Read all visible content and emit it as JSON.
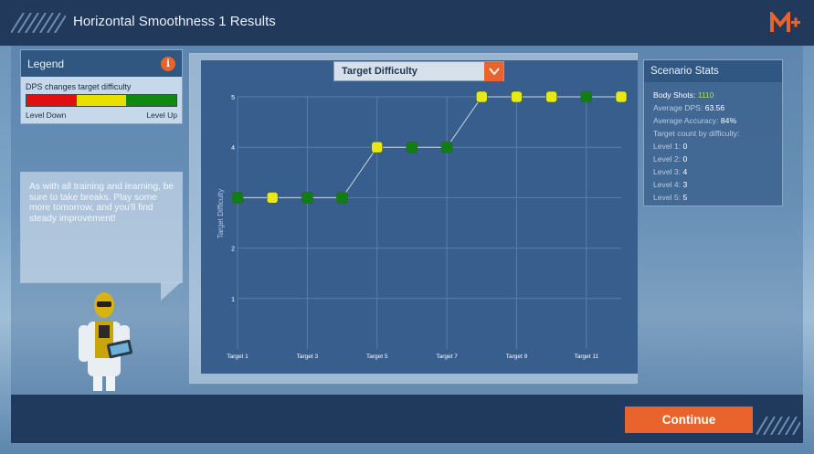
{
  "header": {
    "title": "Horizontal Smoothness 1 Results",
    "logo_icon": "mplus-logo-icon"
  },
  "legend": {
    "title": "Legend",
    "info_icon": "info-icon",
    "info_glyph": "i",
    "description": "DPS changes target difficulty",
    "colors": [
      "#e01010",
      "#e6e000",
      "#118811"
    ],
    "level_down": "Level Down",
    "level_up": "Level Up"
  },
  "tip": {
    "text": "As with all training and learning, be sure to take breaks. Play some more tomorrow, and you'll find steady improvement!"
  },
  "dropdown": {
    "selected": "Target Difficulty",
    "icon": "chevron-down-icon"
  },
  "chart_data": {
    "type": "line",
    "title": "",
    "xlabel": "",
    "ylabel": "Target Difficulty",
    "ylim": [
      0,
      5
    ],
    "yticks": [
      1,
      2,
      3,
      4,
      5
    ],
    "xtick_labels": [
      "Target 1",
      "Target 3",
      "Target 5",
      "Target 7",
      "Target 9",
      "Target 11"
    ],
    "x": [
      1,
      2,
      3,
      4,
      5,
      6,
      7,
      8,
      9,
      10,
      11,
      12
    ],
    "values": [
      3,
      3,
      3,
      3,
      4,
      4,
      4,
      5,
      5,
      5,
      5,
      5
    ],
    "marker_colors": [
      "green",
      "yellow",
      "green",
      "green",
      "yellow",
      "green",
      "green",
      "yellow",
      "yellow",
      "yellow",
      "green",
      "yellow"
    ],
    "grid": true
  },
  "stats": {
    "title": "Scenario Stats",
    "body_shots_label": "Body Shots:",
    "body_shots": "1110",
    "avg_dps_label": "Average DPS:",
    "avg_dps": "63.56",
    "avg_acc_label": "Average Accuracy:",
    "avg_acc": "84%",
    "target_count_label": "Target count by difficulty:",
    "levels": [
      {
        "label": "Level 1:",
        "value": "0"
      },
      {
        "label": "Level 2:",
        "value": "0"
      },
      {
        "label": "Level 3:",
        "value": "4"
      },
      {
        "label": "Level 4:",
        "value": "3"
      },
      {
        "label": "Level 5:",
        "value": "5"
      }
    ]
  },
  "footer": {
    "continue_label": "Continue"
  }
}
